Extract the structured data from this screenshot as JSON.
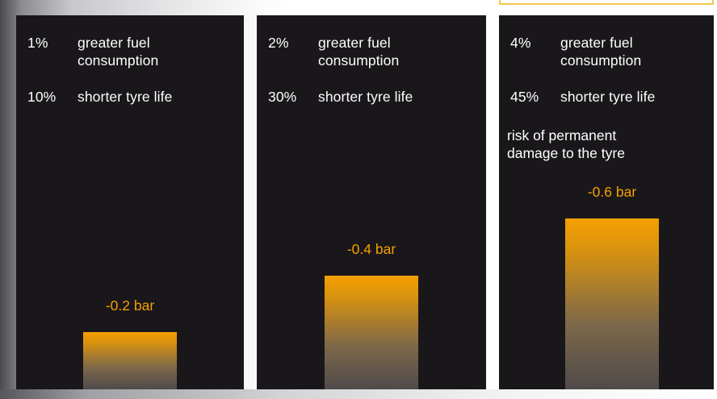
{
  "chart_data": {
    "type": "bar",
    "categories": [
      "-0.2 bar",
      "-0.4 bar",
      "-0.6 bar"
    ],
    "values": [
      -0.2,
      -0.4,
      -0.6
    ],
    "unit": "bar",
    "panels": [
      {
        "bar_label": "-0.2 bar",
        "value": -0.2,
        "rows": [
          {
            "pct": "1%",
            "desc": [
              "greater fuel",
              "consumption"
            ]
          },
          {
            "pct": "10%",
            "desc": [
              "shorter tyre life"
            ]
          }
        ],
        "note": []
      },
      {
        "bar_label": "-0.4 bar",
        "value": -0.4,
        "rows": [
          {
            "pct": "2%",
            "desc": [
              "greater fuel",
              "consumption"
            ]
          },
          {
            "pct": "30%",
            "desc": [
              "shorter tyre life"
            ]
          }
        ],
        "note": []
      },
      {
        "bar_label": "-0.6 bar",
        "value": -0.6,
        "rows": [
          {
            "pct": "4%",
            "desc": [
              "greater fuel",
              "consumption"
            ]
          },
          {
            "pct": "45%",
            "desc": [
              "shorter tyre life"
            ]
          }
        ],
        "note": [
          "risk of permanent",
          "damage to the tyre"
        ]
      }
    ]
  },
  "colors": {
    "panel_background": "#1a171b",
    "bar_top": "#f5a000",
    "bar_bottom": "#4f4a4a",
    "label_text": "#f5a000",
    "body_text": "#ffffff",
    "accent_tab_border": "#f4c548"
  }
}
